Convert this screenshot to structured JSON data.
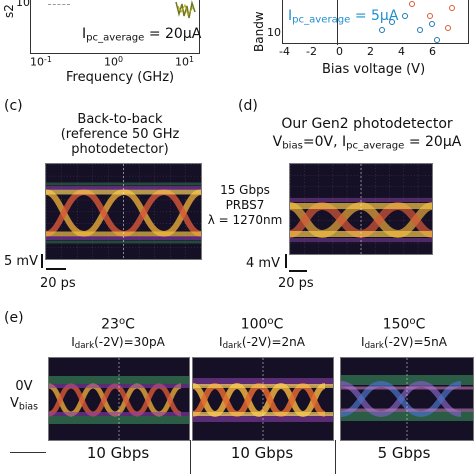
{
  "top_left": {
    "y_label_fragment": "s2",
    "tick_10": "10",
    "current_label": "I",
    "current_sub": "pc_average",
    "current_value": " = 20μA",
    "x_ticks": [
      "10",
      "10",
      "10"
    ],
    "x_tick_exps": [
      "-1",
      "0",
      "1"
    ],
    "xlabel": "Frequency (GHz)"
  },
  "top_right": {
    "y_label_fragment": "Bandw",
    "y_tick": "10",
    "current_label": "I",
    "current_sub": "pc_average",
    "current_value": " = 5μA",
    "x_ticks": [
      "-4",
      "-2",
      "0",
      "2",
      "4",
      "6"
    ],
    "xlabel": "Bias voltage (V)",
    "colors": {
      "blue_points": "#1f77b4",
      "orange_points": "#e4572e",
      "current_text": "#1f8fd0"
    }
  },
  "panel_c": {
    "label": "(c)",
    "title_line1": "Back-to-back",
    "title_line2": "(reference 50 GHz",
    "title_line3": "photodetector)",
    "scale_v": "5 mV",
    "scale_t": "20 ps"
  },
  "center_info": {
    "line1": "15 Gbps",
    "line2": "PRBS7",
    "line3": "λ = 1270nm"
  },
  "panel_d": {
    "label": "(d)",
    "title_line1": "Our Gen2 photodetector",
    "vbias_prefix": "V",
    "vbias_sub": "bias",
    "vbias_value": "=0V, I",
    "ipc_sub": "pc_average",
    "ipc_value": " = 20μA",
    "scale_v": "4 mV",
    "scale_t": "20 ps"
  },
  "panel_e": {
    "label": "(e)",
    "row_label_line1": "0V",
    "row_label_v": "V",
    "row_label_sub": "bias",
    "columns": [
      {
        "temp": "23",
        "temp_unit": "C",
        "idark_value": "=30pA",
        "rate": "10 Gbps"
      },
      {
        "temp": "100",
        "temp_unit": "C",
        "idark_value": "=2nA",
        "rate": "10 Gbps"
      },
      {
        "temp": "150",
        "temp_unit": "C",
        "idark_value": "=5nA",
        "rate": "5 Gbps"
      }
    ],
    "idark_prefix": "I",
    "idark_sub": "dark",
    "idark_mid": "(-2V)",
    "degree": "o"
  }
}
